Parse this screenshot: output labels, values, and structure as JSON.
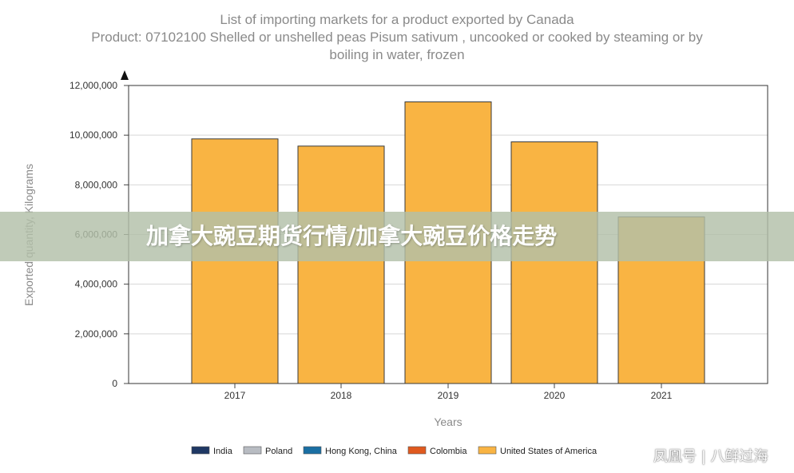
{
  "chart_data": {
    "type": "bar",
    "title": "List of importing markets for a product exported by Canada",
    "subtitle_lines": [
      "Product: 07102100 Shelled or unshelled peas Pisum sativum , uncooked or cooked by steaming or by",
      "boiling in water, frozen"
    ],
    "xlabel": "Years",
    "ylabel": "Exported quantity, Kilograms",
    "categories": [
      "2017",
      "2018",
      "2019",
      "2020",
      "2021"
    ],
    "ylim": [
      0,
      12000000
    ],
    "yticks": [
      0,
      2000000,
      4000000,
      6000000,
      8000000,
      10000000,
      12000000
    ],
    "ytick_labels": [
      "0",
      "2,000,000",
      "4,000,000",
      "6,000,000",
      "8,000,000",
      "10,000,000",
      "12,000,000"
    ],
    "stacked": true,
    "series": [
      {
        "name": "India",
        "color": "#1f3864",
        "values": [
          0,
          0,
          0,
          0,
          0
        ]
      },
      {
        "name": "Poland",
        "color": "#b8bcc2",
        "values": [
          0,
          0,
          0,
          0,
          0
        ]
      },
      {
        "name": "Hong Kong, China",
        "color": "#1a6fa3",
        "values": [
          0,
          0,
          0,
          0,
          0
        ]
      },
      {
        "name": "Colombia",
        "color": "#e05a1f",
        "values": [
          0,
          0,
          0,
          0,
          0
        ]
      },
      {
        "name": "United States of America",
        "color": "#f9b443",
        "values": [
          9850000,
          9560000,
          11340000,
          9730000,
          6710000
        ]
      }
    ],
    "grid": true,
    "legend": "bottom"
  },
  "banner": {
    "text": "加拿大豌豆期货行情/加拿大豌豆价格走势"
  },
  "watermark": {
    "text": "凤凰号 | 八鲜过海"
  }
}
